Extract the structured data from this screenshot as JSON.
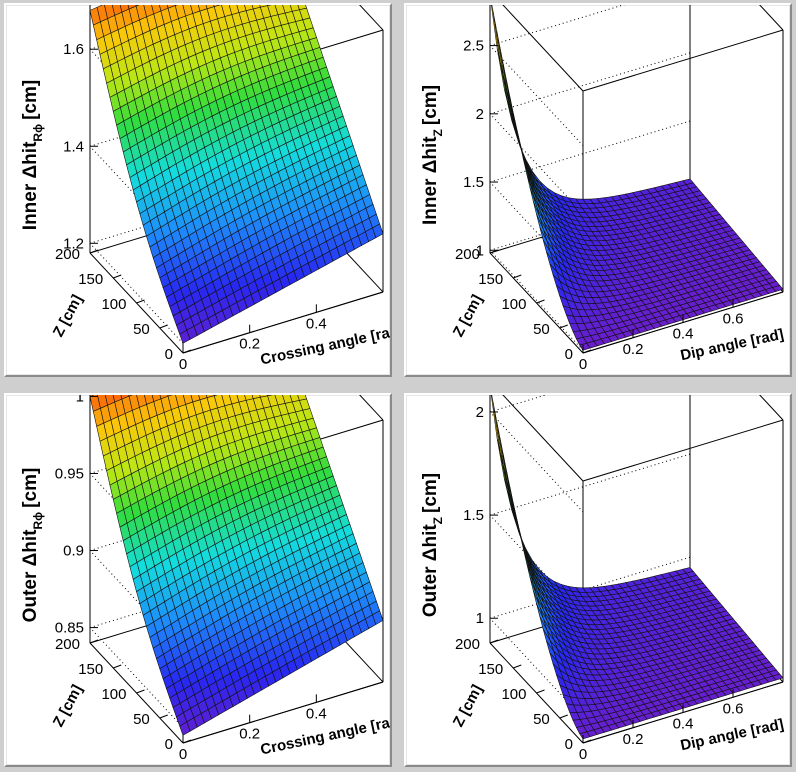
{
  "chart_data": [
    {
      "type": "surface",
      "zlabel": "Inner Δhit",
      "zlabel_sub": "Rϕ",
      "zlabel_unit": "[cm]",
      "xlabel": "Crossing angle [rad]",
      "ylabel": "Z [cm]",
      "xlim": [
        0,
        0.6
      ],
      "ylim": [
        0,
        200
      ],
      "zlim": [
        1.18,
        1.72
      ],
      "xticks": [
        "0",
        "0.2",
        "0.4"
      ],
      "yticks": [
        "0",
        "50",
        "100",
        "150",
        "200"
      ],
      "zticks": [
        "1.2",
        "1.4",
        "1.6"
      ],
      "surface": {
        "shape": "rphi",
        "corner_x0_y200": 1.68,
        "corner_x0_y0": 1.2,
        "corner_xmax_y200": 1.66,
        "corner_xmax_y0": 1.3
      },
      "colormap": "rainbow"
    },
    {
      "type": "surface",
      "zlabel": "Inner Δhit",
      "zlabel_sub": "Z",
      "zlabel_unit": "[cm]",
      "xlabel": "Dip angle [rad]",
      "ylabel": "Z [cm]",
      "xlim": [
        0,
        0.8
      ],
      "ylim": [
        0,
        200
      ],
      "zlim": [
        0.98,
        2.9
      ],
      "xticks": [
        "0",
        "0.2",
        "0.4",
        "0.6"
      ],
      "yticks": [
        "0",
        "50",
        "100",
        "150",
        "200"
      ],
      "zticks": [
        "1",
        "1.5",
        "2",
        "2.5"
      ],
      "surface": {
        "shape": "dz",
        "corner_x0_y200": 2.8,
        "corner_x0_y0": 1.0,
        "corner_xmax_y200": 1.3,
        "corner_xmax_y0": 1.0
      },
      "colormap": "rainbow"
    },
    {
      "type": "surface",
      "zlabel": "Outer Δhit",
      "zlabel_sub": "Rϕ",
      "zlabel_unit": "[cm]",
      "xlabel": "Crossing angle [rad]",
      "ylabel": "Z [cm]",
      "xlim": [
        0,
        0.6
      ],
      "ylim": [
        0,
        200
      ],
      "zlim": [
        0.84,
        1.01
      ],
      "xticks": [
        "0",
        "0.2",
        "0.4"
      ],
      "yticks": [
        "0",
        "50",
        "100",
        "150",
        "200"
      ],
      "zticks": [
        "0.85",
        "0.9",
        "0.95",
        "1"
      ],
      "surface": {
        "shape": "rphi",
        "corner_x0_y200": 1.0,
        "corner_x0_y0": 0.845,
        "corner_xmax_y200": 0.99,
        "corner_xmax_y0": 0.88
      },
      "colormap": "rainbow"
    },
    {
      "type": "surface",
      "zlabel": "Outer Δhit",
      "zlabel_sub": "Z",
      "zlabel_unit": "[cm]",
      "xlabel": "Dip angle [rad]",
      "ylabel": "Z [cm]",
      "xlim": [
        0,
        0.8
      ],
      "ylim": [
        0,
        200
      ],
      "zlim": [
        0.88,
        2.15
      ],
      "xticks": [
        "0",
        "0.2",
        "0.4",
        "0.6"
      ],
      "yticks": [
        "0",
        "50",
        "100",
        "150",
        "200"
      ],
      "zticks": [
        "1",
        "1.5",
        "2"
      ],
      "surface": {
        "shape": "dz",
        "corner_x0_y200": 2.08,
        "corner_x0_y0": 0.9,
        "corner_xmax_y200": 1.1,
        "corner_xmax_y0": 0.9
      },
      "colormap": "rainbow"
    }
  ]
}
